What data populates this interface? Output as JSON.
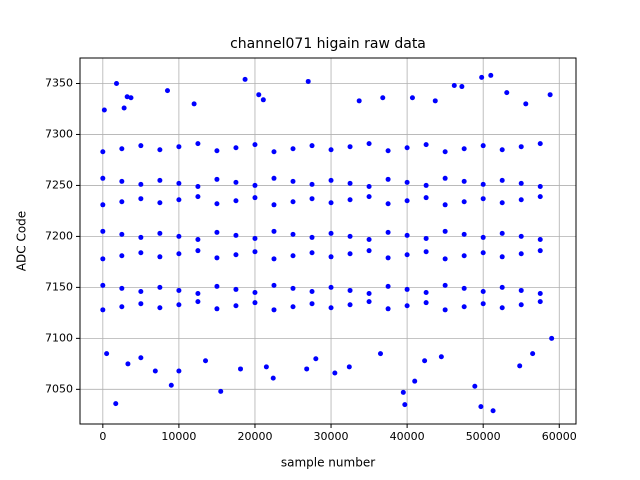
{
  "chart_data": {
    "type": "scatter",
    "title": "channel071 higain raw data",
    "x_label": "sample number",
    "y_label": "ADC Code",
    "xlim": [
      -3000,
      62200
    ],
    "ylim": [
      7016,
      7375
    ],
    "xticks": [
      0,
      10000,
      20000,
      30000,
      40000,
      50000,
      60000
    ],
    "yticks": [
      7050,
      7100,
      7150,
      7200,
      7250,
      7300,
      7350
    ],
    "grid": true,
    "series": [
      {
        "color": "#0000ff",
        "x": [
          0,
          0,
          0,
          0,
          0,
          0,
          0,
          2500,
          2500,
          2500,
          2500,
          2500,
          2500,
          2500,
          5000,
          5000,
          5000,
          5000,
          5000,
          5000,
          5000,
          7500,
          7500,
          7500,
          7500,
          7500,
          7500,
          7500,
          10000,
          10000,
          10000,
          10000,
          10000,
          10000,
          10000,
          12500,
          12500,
          12500,
          12500,
          12500,
          12500,
          12500,
          15000,
          15000,
          15000,
          15000,
          15000,
          15000,
          15000,
          17500,
          17500,
          17500,
          17500,
          17500,
          17500,
          17500,
          20000,
          20000,
          20000,
          20000,
          20000,
          20000,
          20000,
          22500,
          22500,
          22500,
          22500,
          22500,
          22500,
          22500,
          25000,
          25000,
          25000,
          25000,
          25000,
          25000,
          25000,
          27500,
          27500,
          27500,
          27500,
          27500,
          27500,
          27500,
          30000,
          30000,
          30000,
          30000,
          30000,
          30000,
          30000,
          32500,
          32500,
          32500,
          32500,
          32500,
          32500,
          32500,
          35000,
          35000,
          35000,
          35000,
          35000,
          35000,
          35000,
          37500,
          37500,
          37500,
          37500,
          37500,
          37500,
          37500,
          40000,
          40000,
          40000,
          40000,
          40000,
          40000,
          40000,
          42500,
          42500,
          42500,
          42500,
          42500,
          42500,
          42500,
          45000,
          45000,
          45000,
          45000,
          45000,
          45000,
          45000,
          47500,
          47500,
          47500,
          47500,
          47500,
          47500,
          47500,
          50000,
          50000,
          50000,
          50000,
          50000,
          50000,
          50000,
          52500,
          52500,
          52500,
          52500,
          52500,
          52500,
          52500,
          55000,
          55000,
          55000,
          55000,
          55000,
          55000,
          55000,
          57500,
          57500,
          57500,
          57500,
          57500,
          57500,
          57500,
          1800,
          1700,
          8500,
          18700,
          27000,
          49800,
          51000,
          46200,
          47200,
          39500,
          39700,
          49700,
          51300,
          15500,
          9000,
          48900,
          41000,
          200,
          3200,
          3700,
          2800,
          20500,
          21100,
          40700,
          58800,
          53100,
          36800,
          33700,
          43700,
          12000,
          55600,
          6900,
          10000,
          18100,
          21500,
          26800,
          30500,
          32400,
          22400,
          3300,
          54800,
          56500,
          42300,
          59000,
          500,
          5000,
          13500,
          28000,
          36500,
          44500
        ],
        "y": [
          7128,
          7152,
          7178,
          7205,
          7231,
          7257,
          7283,
          7131,
          7149,
          7181,
          7202,
          7234,
          7254,
          7286,
          7134,
          7146,
          7184,
          7199,
          7237,
          7251,
          7289,
          7130,
          7150,
          7180,
          7203,
          7233,
          7255,
          7285,
          7133,
          7147,
          7183,
          7200,
          7236,
          7252,
          7288,
          7136,
          7144,
          7186,
          7197,
          7239,
          7249,
          7291,
          7129,
          7151,
          7179,
          7204,
          7232,
          7256,
          7284,
          7132,
          7148,
          7182,
          7201,
          7235,
          7253,
          7287,
          7135,
          7145,
          7185,
          7198,
          7238,
          7250,
          7290,
          7128,
          7152,
          7178,
          7205,
          7231,
          7257,
          7283,
          7131,
          7149,
          7181,
          7202,
          7234,
          7254,
          7286,
          7134,
          7146,
          7184,
          7199,
          7237,
          7251,
          7289,
          7130,
          7150,
          7180,
          7203,
          7233,
          7255,
          7285,
          7133,
          7147,
          7183,
          7200,
          7236,
          7252,
          7288,
          7136,
          7144,
          7186,
          7197,
          7239,
          7249,
          7291,
          7129,
          7151,
          7179,
          7204,
          7232,
          7256,
          7284,
          7132,
          7148,
          7182,
          7201,
          7235,
          7253,
          7287,
          7135,
          7145,
          7185,
          7198,
          7238,
          7250,
          7290,
          7128,
          7152,
          7178,
          7205,
          7231,
          7257,
          7283,
          7131,
          7149,
          7181,
          7202,
          7234,
          7254,
          7286,
          7134,
          7146,
          7184,
          7199,
          7237,
          7251,
          7289,
          7130,
          7150,
          7180,
          7203,
          7233,
          7255,
          7285,
          7133,
          7147,
          7183,
          7200,
          7236,
          7252,
          7288,
          7136,
          7144,
          7186,
          7197,
          7239,
          7249,
          7291,
          7350,
          7036,
          7343,
          7354,
          7352,
          7356,
          7358,
          7348,
          7347,
          7047,
          7035,
          7033,
          7029,
          7048,
          7054,
          7053,
          7058,
          7324,
          7337,
          7336,
          7326,
          7339,
          7334,
          7336,
          7339,
          7341,
          7336,
          7333,
          7333,
          7330,
          7330,
          7068,
          7068,
          7070,
          7072,
          7070,
          7066,
          7072,
          7061,
          7075,
          7073,
          7085,
          7078,
          7100,
          7085,
          7081,
          7078,
          7080,
          7085,
          7082
        ]
      }
    ]
  }
}
